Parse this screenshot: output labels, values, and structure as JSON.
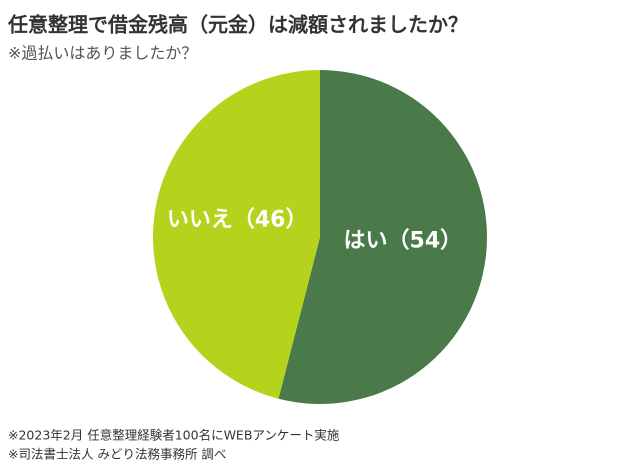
{
  "chart_data": {
    "type": "pie",
    "title": "任意整理で借金残高（元金）は減額されましたか？",
    "subtitle": "※過払いはありましたか？",
    "categories": [
      "はい",
      "いいえ"
    ],
    "values": [
      54,
      46
    ],
    "value_labels": [
      "（54）",
      "（46）"
    ],
    "colors": [
      "#4a7a4a",
      "#b5d31c"
    ],
    "notes": [
      "※2023年2月 任意整理経験者100名にWEBアンケート実施",
      "※司法書士法人 みどり法務事務所 調べ"
    ]
  }
}
